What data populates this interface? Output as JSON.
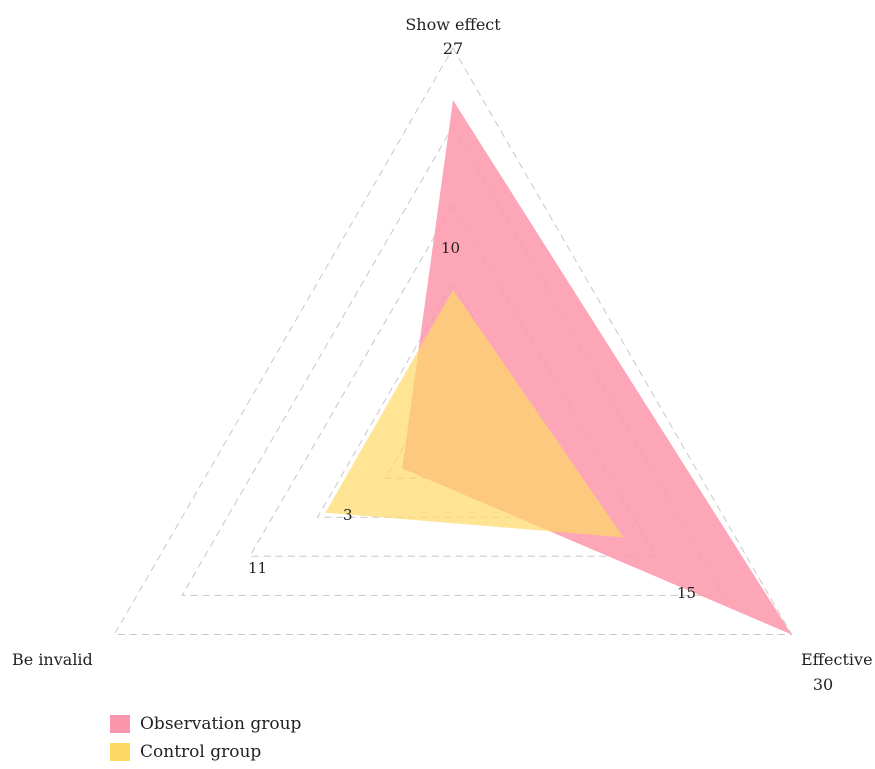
{
  "chart_data": {
    "type": "radar",
    "axes": [
      {
        "name": "Show effect",
        "max": 27
      },
      {
        "name": "Effective",
        "max": 30
      },
      {
        "name": "Be invalid",
        "max": null
      }
    ],
    "series": [
      {
        "name": "Observation group",
        "values": [
          23.4,
          30,
          4.5
        ],
        "color": "#fc97ab"
      },
      {
        "name": "Control group",
        "values": [
          10.3,
          15.1,
          11.3
        ],
        "color": "#fdd865"
      }
    ],
    "data_labels": [
      "10",
      "15",
      "3",
      "11"
    ],
    "grid": "dashed-triangles",
    "legend": "bottom-left"
  }
}
